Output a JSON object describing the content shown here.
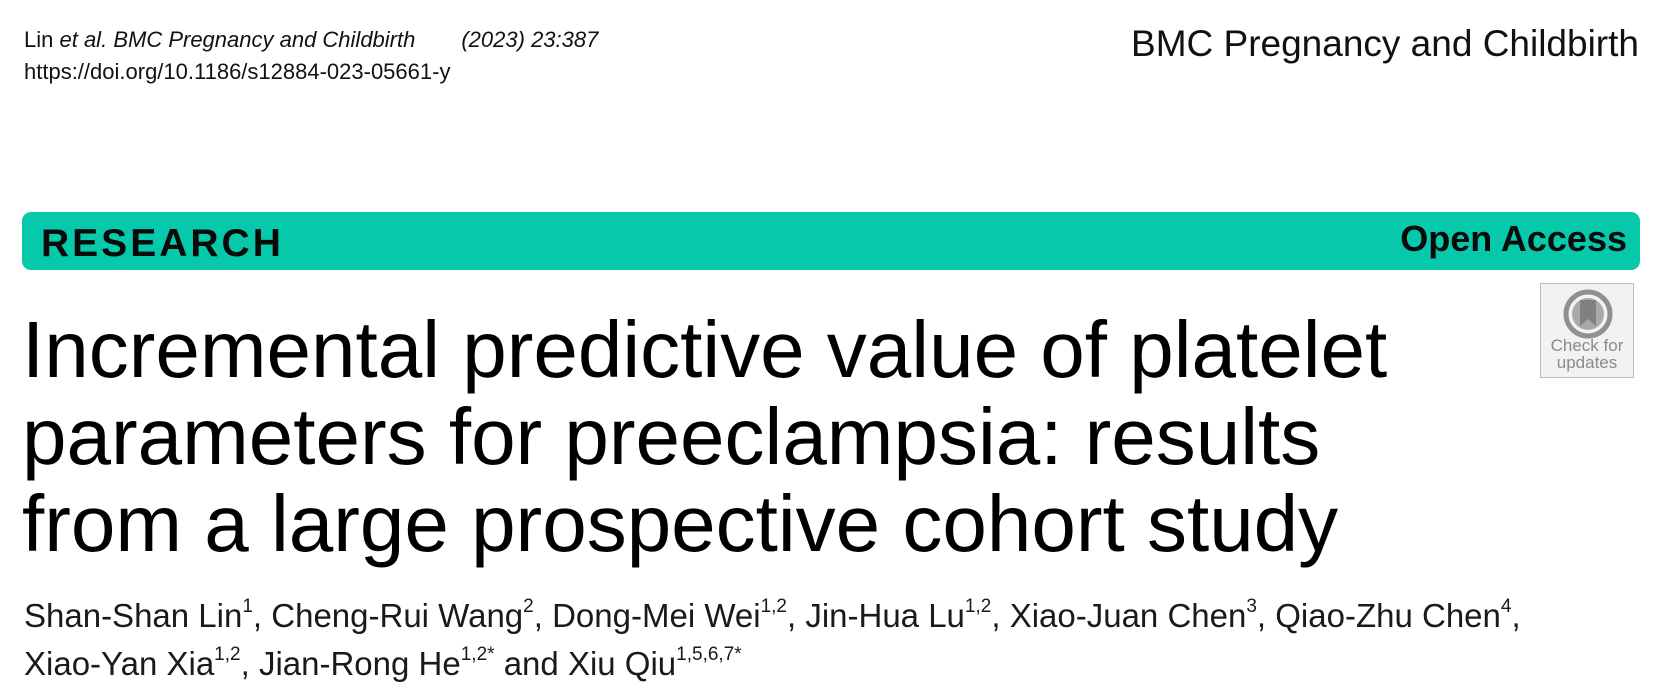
{
  "citation": {
    "authors": "Lin ",
    "etal": "et al.",
    "journal": "BMC Pregnancy and Childbirth",
    "year_volume": "(2023) 23:387",
    "doi": "https://doi.org/10.1186/s12884-023-05661-y"
  },
  "journal_name": "BMC Pregnancy and Childbirth",
  "banner": {
    "article_type": "RESEARCH",
    "access": "Open Access",
    "color": "#06c8ab"
  },
  "check_updates": {
    "line1": "Check for",
    "line2": "updates",
    "icon": "bookmark-circle-icon"
  },
  "title_lines": [
    "Incremental predictive value of platelet",
    "parameters for preeclampsia: results",
    "from a large prospective cohort study"
  ],
  "authors": [
    {
      "name": "Shan-Shan Lin",
      "aff": "1",
      "sep": ", "
    },
    {
      "name": "Cheng-Rui Wang",
      "aff": "2",
      "sep": ", "
    },
    {
      "name": "Dong-Mei Wei",
      "aff": "1,2",
      "sep": ", "
    },
    {
      "name": "Jin-Hua Lu",
      "aff": "1,2",
      "sep": ", "
    },
    {
      "name": "Xiao-Juan Chen",
      "aff": "3",
      "sep": ", "
    },
    {
      "name": "Qiao-Zhu Chen",
      "aff": "4",
      "sep": ","
    },
    {
      "name": "Xiao-Yan Xia",
      "aff": "1,2",
      "sep": ", "
    },
    {
      "name": "Jian-Rong He",
      "aff": "1,2*",
      "sep": " and "
    },
    {
      "name": "Xiu Qiu",
      "aff": "1,5,6,7*",
      "sep": ""
    }
  ]
}
